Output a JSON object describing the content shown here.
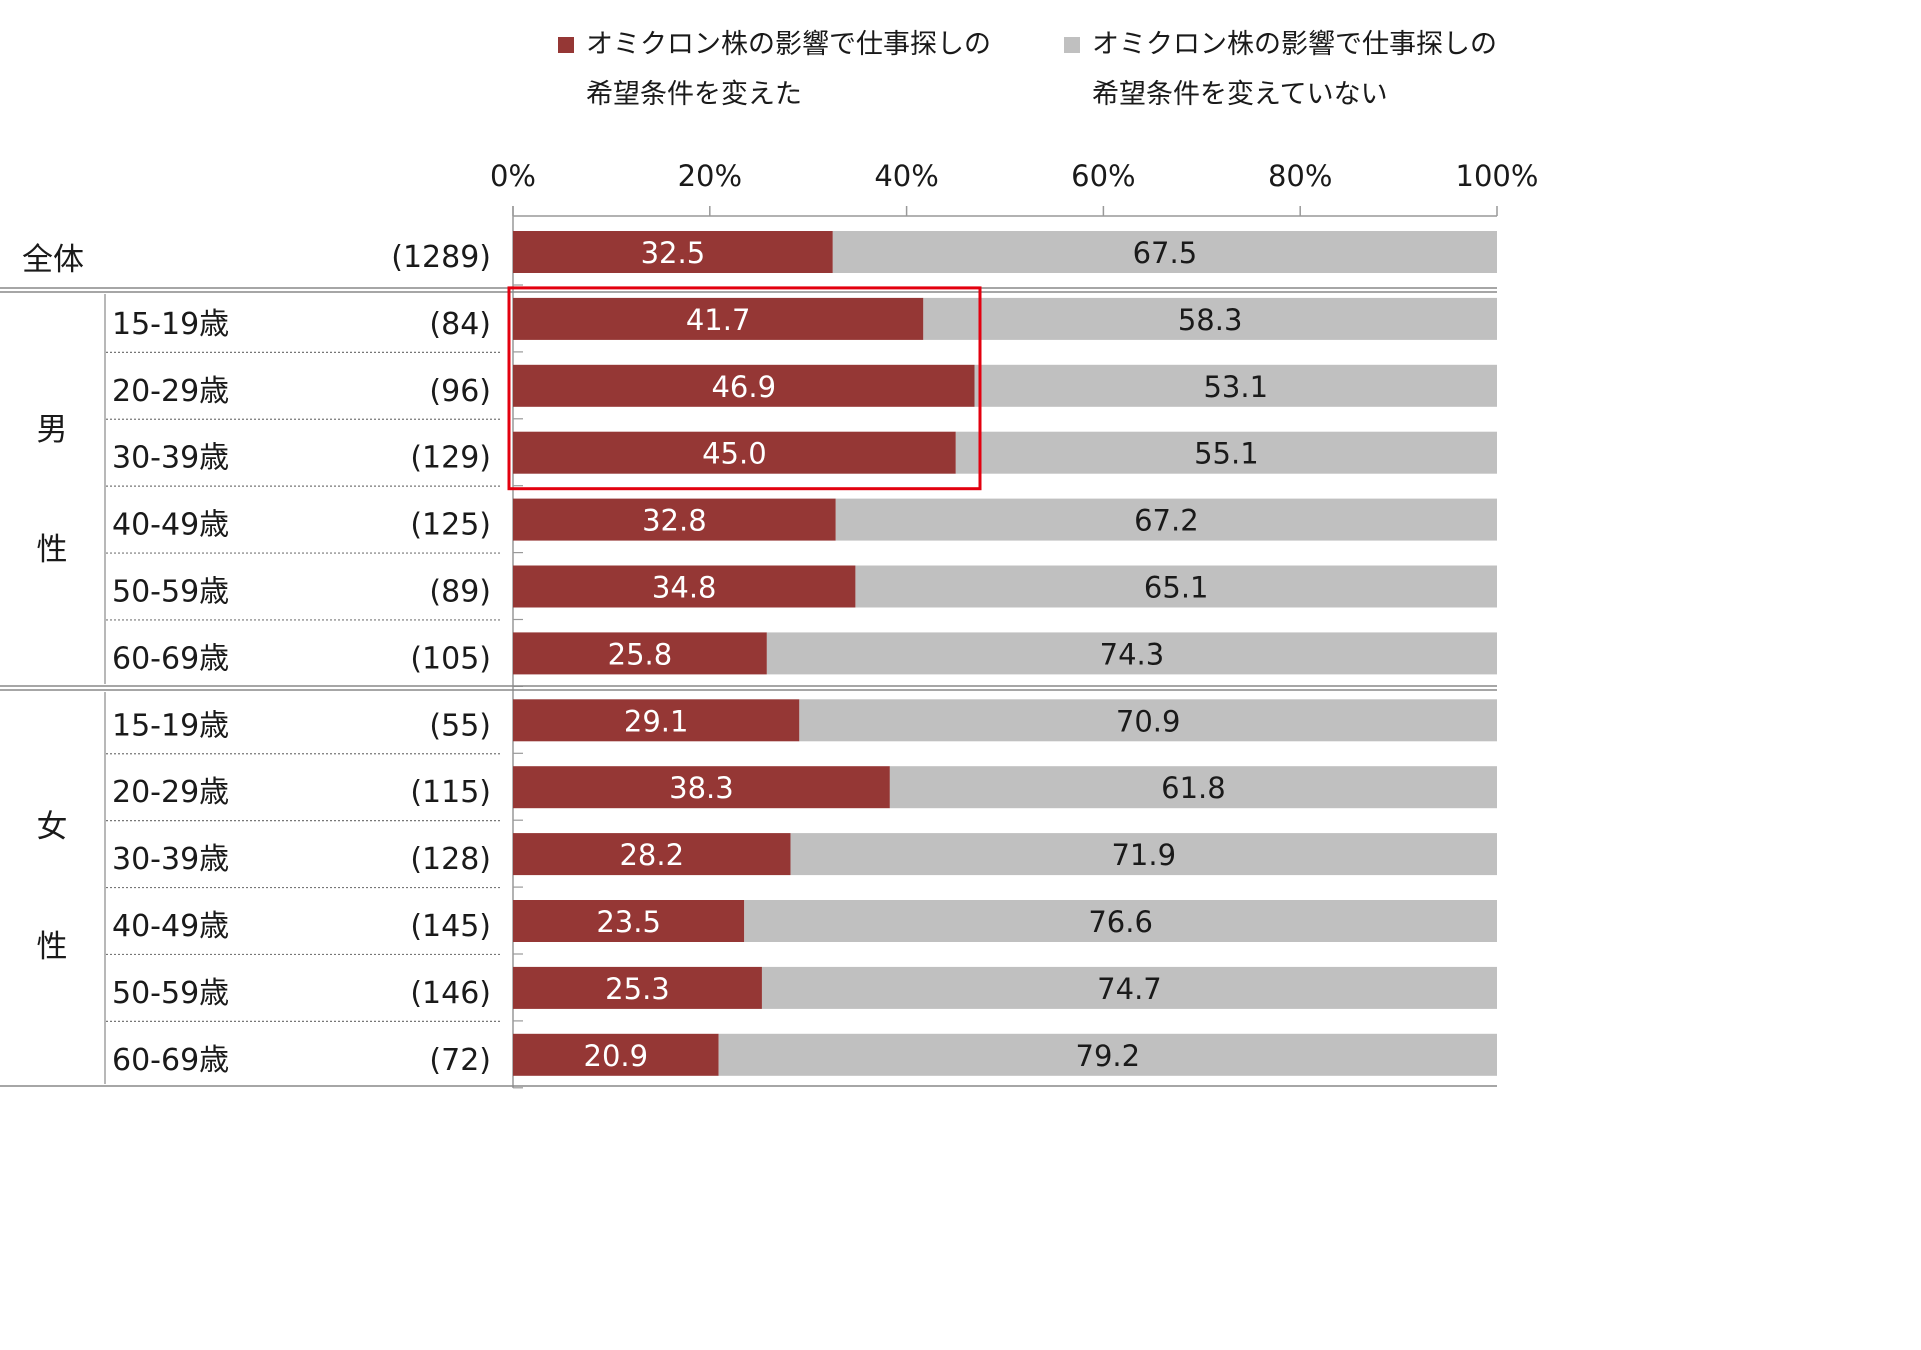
{
  "chart_data": {
    "type": "bar",
    "orientation": "horizontal",
    "stacked": "percent",
    "title": "",
    "xlabel": "",
    "ylabel": "",
    "xlim": [
      0,
      100
    ],
    "x_ticks": [
      "0%",
      "20%",
      "40%",
      "60%",
      "80%",
      "100%"
    ],
    "legend": {
      "position": "top",
      "series1": [
        "オミクロン株の影響で仕事探しの",
        "希望条件を変えた"
      ],
      "series2": [
        "オミクロン株の影響で仕事探しの",
        "希望条件を変えていない"
      ]
    },
    "colors": {
      "changed": "#953735",
      "not_changed": "#c0c0c0",
      "highlight": "#e3000f"
    },
    "group_labels": {
      "total": "全体",
      "male": [
        "男",
        "性"
      ],
      "female": [
        "女",
        "性"
      ]
    },
    "rows": [
      {
        "group": "total",
        "label": "全体",
        "n": "(1289)",
        "changed": 32.5,
        "not_changed": 67.5
      },
      {
        "group": "male",
        "label": "15-19歳",
        "n": "(84)",
        "changed": 41.7,
        "not_changed": 58.3
      },
      {
        "group": "male",
        "label": "20-29歳",
        "n": "(96)",
        "changed": 46.9,
        "not_changed": 53.1
      },
      {
        "group": "male",
        "label": "30-39歳",
        "n": "(129)",
        "changed": 45.0,
        "not_changed": 55.1
      },
      {
        "group": "male",
        "label": "40-49歳",
        "n": "(125)",
        "changed": 32.8,
        "not_changed": 67.2
      },
      {
        "group": "male",
        "label": "50-59歳",
        "n": "(89)",
        "changed": 34.8,
        "not_changed": 65.1
      },
      {
        "group": "male",
        "label": "60-69歳",
        "n": "(105)",
        "changed": 25.8,
        "not_changed": 74.3
      },
      {
        "group": "female",
        "label": "15-19歳",
        "n": "(55)",
        "changed": 29.1,
        "not_changed": 70.9
      },
      {
        "group": "female",
        "label": "20-29歳",
        "n": "(115)",
        "changed": 38.3,
        "not_changed": 61.8
      },
      {
        "group": "female",
        "label": "30-39歳",
        "n": "(128)",
        "changed": 28.2,
        "not_changed": 71.9
      },
      {
        "group": "female",
        "label": "40-49歳",
        "n": "(145)",
        "changed": 23.5,
        "not_changed": 76.6
      },
      {
        "group": "female",
        "label": "50-59歳",
        "n": "(146)",
        "changed": 25.3,
        "not_changed": 74.7
      },
      {
        "group": "female",
        "label": "60-69歳",
        "n": "(72)",
        "changed": 20.9,
        "not_changed": 79.2
      }
    ],
    "highlighted_rows": [
      "男性 15-19歳",
      "男性 20-29歳",
      "男性 30-39歳"
    ]
  }
}
